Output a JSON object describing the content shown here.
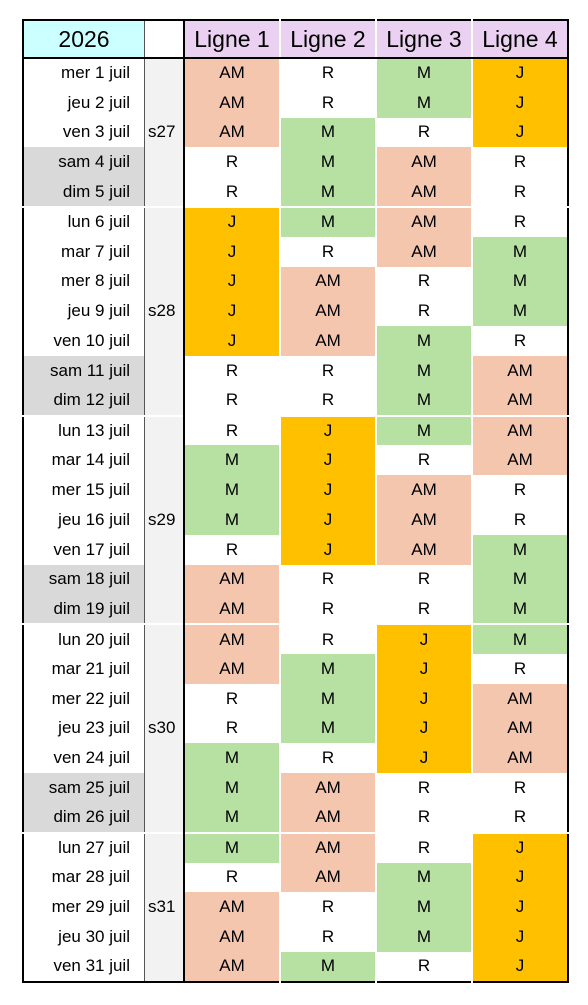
{
  "header": {
    "year": "2026",
    "lines": [
      "Ligne 1",
      "Ligne 2",
      "Ligne 3",
      "Ligne 4"
    ]
  },
  "legend_colors": {
    "AM": "#f5c6ae",
    "R": "#ffffff",
    "M": "#b6e1a3",
    "J": "#ffc000"
  },
  "weeks": [
    {
      "label": "s27",
      "days": [
        {
          "date": "mer 1 juil",
          "weekend": false,
          "shifts": [
            "AM",
            "R",
            "M",
            "J"
          ]
        },
        {
          "date": "jeu 2 juil",
          "weekend": false,
          "shifts": [
            "AM",
            "R",
            "M",
            "J"
          ]
        },
        {
          "date": "ven 3 juil",
          "weekend": false,
          "shifts": [
            "AM",
            "M",
            "R",
            "J"
          ]
        },
        {
          "date": "sam 4 juil",
          "weekend": true,
          "shifts": [
            "R",
            "M",
            "AM",
            "R"
          ]
        },
        {
          "date": "dim 5 juil",
          "weekend": true,
          "shifts": [
            "R",
            "M",
            "AM",
            "R"
          ]
        }
      ]
    },
    {
      "label": "s28",
      "days": [
        {
          "date": "lun 6 juil",
          "weekend": false,
          "shifts": [
            "J",
            "M",
            "AM",
            "R"
          ]
        },
        {
          "date": "mar 7 juil",
          "weekend": false,
          "shifts": [
            "J",
            "R",
            "AM",
            "M"
          ]
        },
        {
          "date": "mer 8 juil",
          "weekend": false,
          "shifts": [
            "J",
            "AM",
            "R",
            "M"
          ]
        },
        {
          "date": "jeu 9 juil",
          "weekend": false,
          "shifts": [
            "J",
            "AM",
            "R",
            "M"
          ]
        },
        {
          "date": "ven 10 juil",
          "weekend": false,
          "shifts": [
            "J",
            "AM",
            "M",
            "R"
          ]
        },
        {
          "date": "sam 11 juil",
          "weekend": true,
          "shifts": [
            "R",
            "R",
            "M",
            "AM"
          ]
        },
        {
          "date": "dim 12 juil",
          "weekend": true,
          "shifts": [
            "R",
            "R",
            "M",
            "AM"
          ]
        }
      ]
    },
    {
      "label": "s29",
      "days": [
        {
          "date": "lun 13 juil",
          "weekend": false,
          "shifts": [
            "R",
            "J",
            "M",
            "AM"
          ]
        },
        {
          "date": "mar 14 juil",
          "weekend": false,
          "shifts": [
            "M",
            "J",
            "R",
            "AM"
          ]
        },
        {
          "date": "mer 15 juil",
          "weekend": false,
          "shifts": [
            "M",
            "J",
            "AM",
            "R"
          ]
        },
        {
          "date": "jeu 16 juil",
          "weekend": false,
          "shifts": [
            "M",
            "J",
            "AM",
            "R"
          ]
        },
        {
          "date": "ven 17 juil",
          "weekend": false,
          "shifts": [
            "R",
            "J",
            "AM",
            "M"
          ]
        },
        {
          "date": "sam 18 juil",
          "weekend": true,
          "shifts": [
            "AM",
            "R",
            "R",
            "M"
          ]
        },
        {
          "date": "dim 19 juil",
          "weekend": true,
          "shifts": [
            "AM",
            "R",
            "R",
            "M"
          ]
        }
      ]
    },
    {
      "label": "s30",
      "days": [
        {
          "date": "lun 20 juil",
          "weekend": false,
          "shifts": [
            "AM",
            "R",
            "J",
            "M"
          ]
        },
        {
          "date": "mar 21 juil",
          "weekend": false,
          "shifts": [
            "AM",
            "M",
            "J",
            "R"
          ]
        },
        {
          "date": "mer 22 juil",
          "weekend": false,
          "shifts": [
            "R",
            "M",
            "J",
            "AM"
          ]
        },
        {
          "date": "jeu 23 juil",
          "weekend": false,
          "shifts": [
            "R",
            "M",
            "J",
            "AM"
          ]
        },
        {
          "date": "ven 24 juil",
          "weekend": false,
          "shifts": [
            "M",
            "R",
            "J",
            "AM"
          ]
        },
        {
          "date": "sam 25 juil",
          "weekend": true,
          "shifts": [
            "M",
            "AM",
            "R",
            "R"
          ]
        },
        {
          "date": "dim 26 juil",
          "weekend": true,
          "shifts": [
            "M",
            "AM",
            "R",
            "R"
          ]
        }
      ]
    },
    {
      "label": "s31",
      "days": [
        {
          "date": "lun 27 juil",
          "weekend": false,
          "shifts": [
            "M",
            "AM",
            "R",
            "J"
          ]
        },
        {
          "date": "mar 28 juil",
          "weekend": false,
          "shifts": [
            "R",
            "AM",
            "M",
            "J"
          ]
        },
        {
          "date": "mer 29 juil",
          "weekend": false,
          "shifts": [
            "AM",
            "R",
            "M",
            "J"
          ]
        },
        {
          "date": "jeu 30 juil",
          "weekend": false,
          "shifts": [
            "AM",
            "R",
            "M",
            "J"
          ]
        },
        {
          "date": "ven 31 juil",
          "weekend": false,
          "shifts": [
            "AM",
            "M",
            "R",
            "J"
          ]
        }
      ]
    }
  ]
}
